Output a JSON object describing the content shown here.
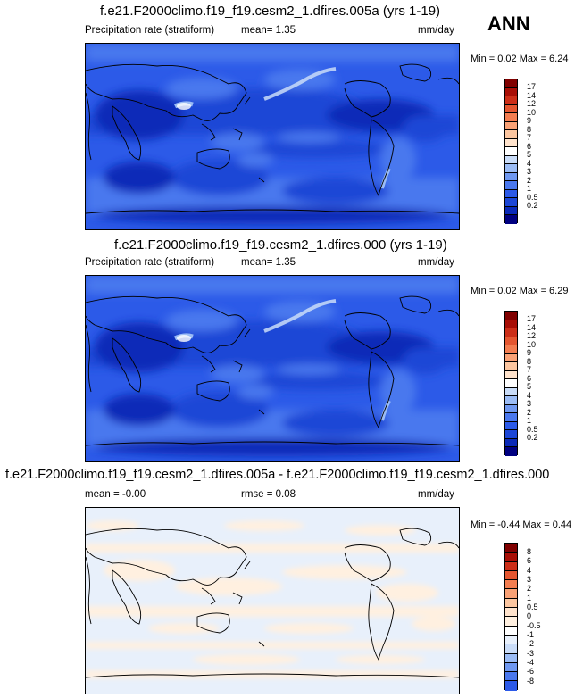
{
  "season": "ANN",
  "colors": {
    "precip": [
      "#000080",
      "#0a29b8",
      "#1b46d6",
      "#2c5ae8",
      "#4a78ee",
      "#6f98f0",
      "#9bbcf5",
      "#c9dcf8",
      "#ffffff",
      "#ffe3cc",
      "#fcc6a0",
      "#f9a175",
      "#f37d50",
      "#e45630",
      "#cc2e18",
      "#a80e06",
      "#800000"
    ],
    "diff": [
      "#000080",
      "#0a29b8",
      "#1b46d6",
      "#2c5ae8",
      "#4a78ee",
      "#6f98f0",
      "#9bbcf5",
      "#c9dcf8",
      "#e8f0fb",
      "#ffffff",
      "#fff0e0",
      "#ffe3cc",
      "#fcc6a0",
      "#f9a175",
      "#f37d50",
      "#e45630",
      "#cc2e18",
      "#a80e06",
      "#800000"
    ]
  },
  "panels": [
    {
      "title": "f.e21.F2000climo.f19_f19.cesm2_1.dfires.005a (yrs 1-19)",
      "left_label": "Precipitation rate (stratiform)",
      "center_label": "mean=   1.35",
      "right_label": "mm/day",
      "minmax": "Min =  0.02 Max =   6.24"
    },
    {
      "title": "f.e21.F2000climo.f19_f19.cesm2_1.dfires.000 (yrs 1-19)",
      "left_label": "Precipitation rate (stratiform)",
      "center_label": "mean=   1.35",
      "right_label": "mm/day",
      "minmax": "Min =  0.02 Max =   6.29"
    },
    {
      "title": "f.e21.F2000climo.f19_f19.cesm2_1.dfires.005a - f.e21.F2000climo.f19_f19.cesm2_1.dfires.000",
      "left_label": "mean =  -0.00",
      "center_label": "rmse =   0.08",
      "right_label": "mm/day",
      "minmax": "Min =  -0.44 Max =   0.44"
    }
  ],
  "chart_data": [
    {
      "type": "heatmap",
      "title": "f.e21.F2000climo.f19_f19.cesm2_1.dfires.005a (yrs 1-19)",
      "variable": "Precipitation rate (stratiform)",
      "units": "mm/day",
      "mean": 1.35,
      "min": 0.02,
      "max": 6.24,
      "colorbar_levels": [
        "17",
        "14",
        "12",
        "10",
        "9",
        "8",
        "7",
        "6",
        "5",
        "4",
        "3",
        "2",
        "1",
        "0.5",
        "0.2"
      ]
    },
    {
      "type": "heatmap",
      "title": "f.e21.F2000climo.f19_f19.cesm2_1.dfires.000 (yrs 1-19)",
      "variable": "Precipitation rate (stratiform)",
      "units": "mm/day",
      "mean": 1.35,
      "min": 0.02,
      "max": 6.29,
      "colorbar_levels": [
        "17",
        "14",
        "12",
        "10",
        "9",
        "8",
        "7",
        "6",
        "5",
        "4",
        "3",
        "2",
        "1",
        "0.5",
        "0.2"
      ]
    },
    {
      "type": "heatmap",
      "title": "f.e21.F2000climo.f19_f19.cesm2_1.dfires.005a - f.e21.F2000climo.f19_f19.cesm2_1.dfires.000",
      "units": "mm/day",
      "mean": -0.0,
      "rmse": 0.08,
      "min": -0.44,
      "max": 0.44,
      "colorbar_levels": [
        "8",
        "6",
        "4",
        "3",
        "2",
        "1",
        "0.5",
        "0",
        "-0.5",
        "-1",
        "-2",
        "-3",
        "-4",
        "-6",
        "-8"
      ]
    }
  ]
}
